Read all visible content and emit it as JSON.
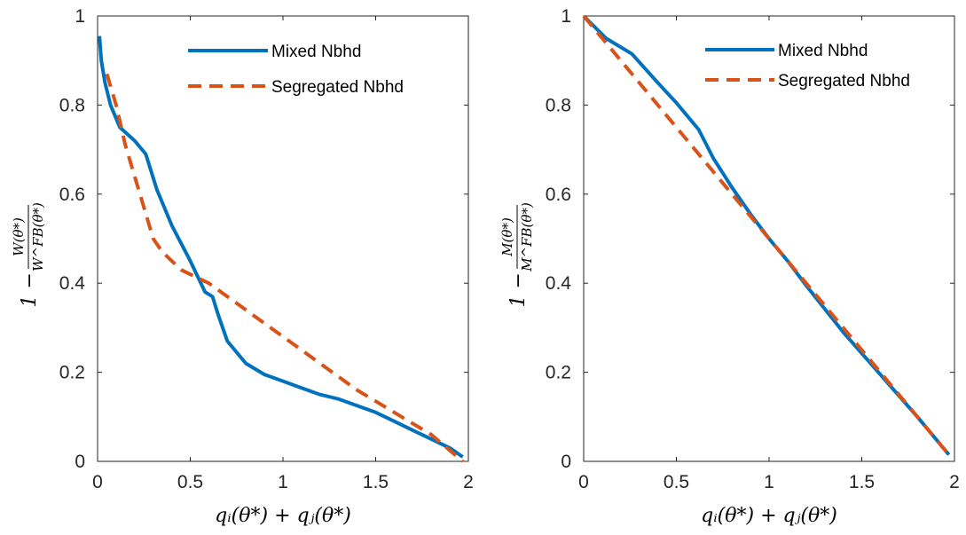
{
  "colors": {
    "mixed": "#0072BD",
    "segregated": "#D95319",
    "axis": "#262626"
  },
  "chart_data": [
    {
      "type": "line",
      "xlabel": "qᵢ(θ*) + qⱼ(θ*)",
      "ylabel_prefix": "1 −",
      "ylabel_num": "W(θ*)",
      "ylabel_den": "W^FB(θ*)",
      "xlim": [
        0,
        2
      ],
      "ylim": [
        0,
        1
      ],
      "xticks": [
        0,
        0.5,
        1,
        1.5,
        2
      ],
      "xtick_labels": [
        "0",
        "0.5",
        "1",
        "1.5",
        "2"
      ],
      "yticks": [
        0,
        0.2,
        0.4,
        0.6,
        0.8,
        1
      ],
      "ytick_labels": [
        "0",
        "0.2",
        "0.4",
        "0.6",
        "0.8",
        "1"
      ],
      "legend": "top-right",
      "grid": false,
      "series": [
        {
          "name": "Mixed Nbhd",
          "style": "solid",
          "x": [
            0.01,
            0.02,
            0.04,
            0.07,
            0.1,
            0.12,
            0.2,
            0.26,
            0.32,
            0.4,
            0.5,
            0.58,
            0.62,
            0.65,
            0.7,
            0.8,
            0.9,
            1.0,
            1.1,
            1.2,
            1.3,
            1.4,
            1.5,
            1.6,
            1.7,
            1.8,
            1.9,
            1.97
          ],
          "y": [
            0.955,
            0.9,
            0.85,
            0.8,
            0.77,
            0.75,
            0.72,
            0.69,
            0.61,
            0.53,
            0.45,
            0.38,
            0.37,
            0.33,
            0.27,
            0.22,
            0.195,
            0.18,
            0.165,
            0.15,
            0.14,
            0.125,
            0.11,
            0.09,
            0.07,
            0.05,
            0.03,
            0.01
          ]
        },
        {
          "name": "Segregated Nbhd",
          "style": "dashed",
          "x": [
            0.05,
            0.1,
            0.15,
            0.2,
            0.25,
            0.3,
            0.35,
            0.4,
            0.45,
            0.5,
            0.6,
            0.7,
            0.8,
            0.9,
            1.0,
            1.2,
            1.4,
            1.6,
            1.8,
            1.97
          ],
          "y": [
            0.87,
            0.8,
            0.71,
            0.64,
            0.57,
            0.5,
            0.47,
            0.45,
            0.43,
            0.42,
            0.4,
            0.37,
            0.34,
            0.31,
            0.28,
            0.22,
            0.16,
            0.11,
            0.06,
            0.0
          ]
        }
      ]
    },
    {
      "type": "line",
      "xlabel": "qᵢ(θ*) + qⱼ(θ*)",
      "ylabel_prefix": "1 −",
      "ylabel_num": "M(θ*)",
      "ylabel_den": "M^FB(θ*)",
      "xlim": [
        0,
        2
      ],
      "ylim": [
        0,
        1
      ],
      "xticks": [
        0,
        0.5,
        1,
        1.5,
        2
      ],
      "xtick_labels": [
        "0",
        "0.5",
        "1",
        "1.5",
        "2"
      ],
      "yticks": [
        0,
        0.2,
        0.4,
        0.6,
        0.8,
        1
      ],
      "ytick_labels": [
        "0",
        "0.2",
        "0.4",
        "0.6",
        "0.8",
        "1"
      ],
      "legend": "top-right",
      "grid": false,
      "series": [
        {
          "name": "Mixed Nbhd",
          "style": "solid",
          "x": [
            0.0,
            0.12,
            0.26,
            0.4,
            0.5,
            0.62,
            0.7,
            0.8,
            0.9,
            1.0,
            1.1,
            1.2,
            1.4,
            1.6,
            1.8,
            1.97
          ],
          "y": [
            1.0,
            0.95,
            0.915,
            0.85,
            0.805,
            0.745,
            0.68,
            0.615,
            0.555,
            0.5,
            0.45,
            0.395,
            0.29,
            0.195,
            0.1,
            0.015
          ]
        },
        {
          "name": "Segregated Nbhd",
          "style": "dashed",
          "x": [
            0.0,
            0.2,
            0.4,
            0.6,
            0.8,
            1.0,
            1.2,
            1.4,
            1.6,
            1.8,
            1.97
          ],
          "y": [
            1.0,
            0.9,
            0.8,
            0.7,
            0.6,
            0.5,
            0.4,
            0.3,
            0.2,
            0.1,
            0.015
          ]
        }
      ]
    }
  ]
}
